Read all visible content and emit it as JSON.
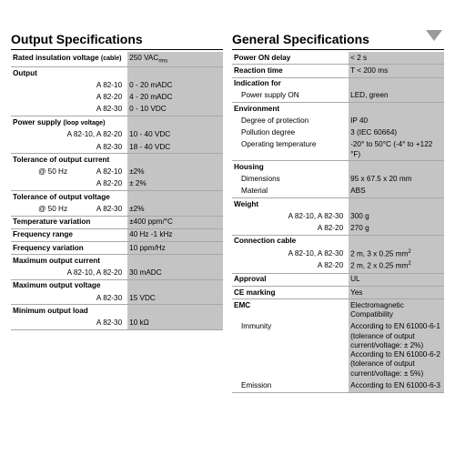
{
  "left": {
    "title": "Output Specifications",
    "rows": [
      {
        "l": "Rated insulation voltage <span style='font-size:7px'>(cable)</span>",
        "v": "250 VAC<sub style='font-size:6px'>rms</sub>",
        "b": true,
        "bold": true
      },
      {
        "l": "Output",
        "v": "",
        "b": false,
        "bold": true
      },
      {
        "l": "A 82-10",
        "v": "0 - 20 mADC",
        "b": false,
        "ra": true
      },
      {
        "l": "A 82-20",
        "v": "4 - 20 mADC",
        "b": false,
        "ra": true
      },
      {
        "l": "A 82-30",
        "v": "0 - 10 VDC",
        "b": true,
        "ra": true
      },
      {
        "l": "Power supply <span style='font-size:7px'>(loop voltage)</span>",
        "v": "",
        "b": false,
        "bold": true
      },
      {
        "l": "A 82-10, A 82-20",
        "v": "10 - 40 VDC",
        "b": false,
        "ra": true
      },
      {
        "l": "A 82-30",
        "v": "18 - 40 VDC",
        "b": true,
        "ra": true
      },
      {
        "l": "Tolerance of output current",
        "v": "",
        "b": false,
        "bold": true
      },
      {
        "l": "<span class='sub'>@ 50 Hz</span>&nbsp;&nbsp;&nbsp;&nbsp;&nbsp;&nbsp;&nbsp;&nbsp;&nbsp;&nbsp;&nbsp;&nbsp;&nbsp;&nbsp;A 82-10",
        "v": "±2%",
        "b": false,
        "ra": true
      },
      {
        "l": "A 82-20",
        "v": "± 2%",
        "b": true,
        "ra": true
      },
      {
        "l": "Tolerance of output voltage",
        "v": "",
        "b": false,
        "bold": true
      },
      {
        "l": "<span class='sub'>@ 50 Hz</span>&nbsp;&nbsp;&nbsp;&nbsp;&nbsp;&nbsp;&nbsp;&nbsp;&nbsp;&nbsp;&nbsp;&nbsp;&nbsp;&nbsp;A 82-30",
        "v": "±2%",
        "b": true,
        "ra": true
      },
      {
        "l": "Temperature variation",
        "v": "±400 ppm/°C",
        "b": true,
        "bold": true
      },
      {
        "l": "Frequency range",
        "v": "40 Hz -1 kHz",
        "b": true,
        "bold": true
      },
      {
        "l": "Frequency variation",
        "v": "10 ppm/Hz",
        "b": true,
        "bold": true
      },
      {
        "l": "Maximum output current",
        "v": "",
        "b": false,
        "bold": true
      },
      {
        "l": "A 82-10, A 82-20",
        "v": "30 mADC",
        "b": true,
        "ra": true
      },
      {
        "l": "Maximum output voltage",
        "v": "",
        "b": false,
        "bold": true
      },
      {
        "l": "A 82-30",
        "v": "15 VDC",
        "b": true,
        "ra": true
      },
      {
        "l": "Minimum output load",
        "v": "",
        "b": false,
        "bold": true
      },
      {
        "l": "A 82-30",
        "v": "10 kΩ",
        "b": true,
        "ra": true
      }
    ]
  },
  "right": {
    "title": "General Specifications",
    "rows": [
      {
        "l": "Power ON delay",
        "v": "< 2 s",
        "b": true,
        "bold": true
      },
      {
        "l": "Reaction time",
        "v": "T < 200 ms",
        "b": true,
        "bold": true
      },
      {
        "l": "Indication for",
        "v": "",
        "b": false,
        "bold": true
      },
      {
        "l": "Power supply ON",
        "v": "LED, green",
        "b": true,
        "sub": true
      },
      {
        "l": "Environment",
        "v": "",
        "b": false,
        "bold": true
      },
      {
        "l": "Degree of protection",
        "v": "IP 40",
        "b": false,
        "sub": true
      },
      {
        "l": "Pollution degree",
        "v": "3 (IEC 60664)",
        "b": false,
        "sub": true
      },
      {
        "l": "Operating temperature",
        "v": "-20° to 50°C (-4° to +122 °F)",
        "b": true,
        "sub": true
      },
      {
        "l": "Housing",
        "v": "",
        "b": false,
        "bold": true
      },
      {
        "l": "Dimensions",
        "v": "95 x 67.5 x 20 mm",
        "b": false,
        "sub": true
      },
      {
        "l": "Material",
        "v": "ABS",
        "b": true,
        "sub": true
      },
      {
        "l": "Weight",
        "v": "",
        "b": false,
        "bold": true
      },
      {
        "l": "A 82-10, A 82-30",
        "v": "300 g",
        "b": false,
        "ra": true
      },
      {
        "l": "A 82-20",
        "v": "270 g",
        "b": true,
        "ra": true
      },
      {
        "l": "Connection cable",
        "v": "",
        "b": false,
        "bold": true
      },
      {
        "l": "A 82-10, A 82-30",
        "v": "2 m, 3 x 0.25 mm<sup style='font-size:6px'>2</sup>",
        "b": false,
        "ra": true
      },
      {
        "l": "A 82-20",
        "v": "2 m, 2 x 0.25 mm<sup style='font-size:6px'>2</sup>",
        "b": true,
        "ra": true
      },
      {
        "l": "Approval",
        "v": "UL",
        "b": true,
        "bold": true
      },
      {
        "l": "CE marking",
        "v": "Yes",
        "b": true,
        "bold": true
      },
      {
        "l": "EMC",
        "v": "Electromagnetic Compatibility",
        "b": false,
        "bold": true
      },
      {
        "l": "Immunity",
        "v": "According to EN 61000-6-1<br>(tolerance of output<br>current/voltage: ± 2%)<br>According to EN 61000-6-2<br>(tolerance of output<br>current/voltage: ± 5%)",
        "b": false,
        "sub": true
      },
      {
        "l": "Emission",
        "v": "According to EN 61000-6-3",
        "b": true,
        "sub": true
      }
    ]
  },
  "colors": {
    "valuebg": "#c4c4c4",
    "rule": "#a8a8a8"
  }
}
